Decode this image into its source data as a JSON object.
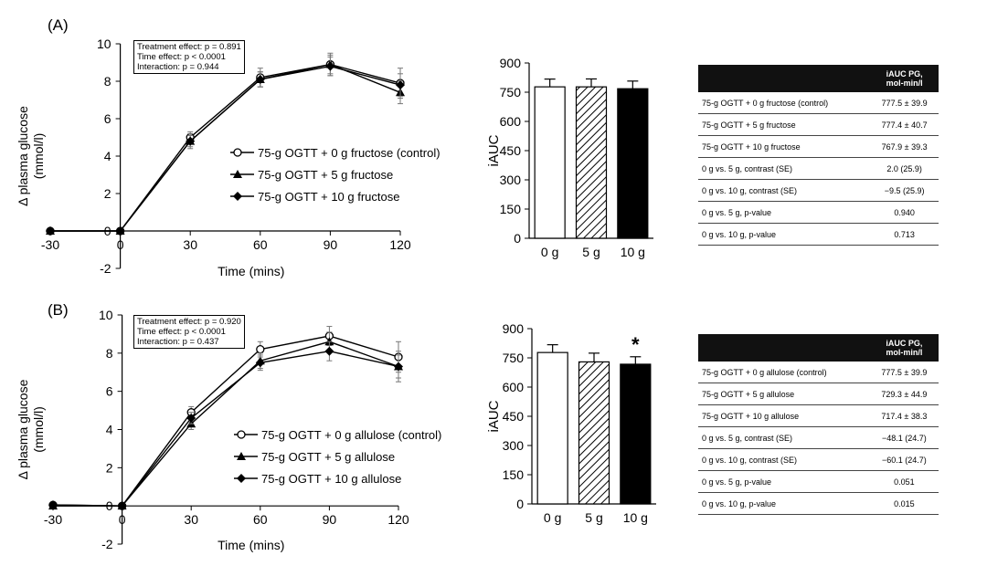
{
  "panels": [
    {
      "label": "(A)",
      "stats": [
        "Treatment effect: p = 0.891",
        "Time effect: p < 0.0001",
        "Interaction: p = 0.944"
      ],
      "table": {
        "header": [
          "",
          "iAUC PG,\nmol-min/l"
        ],
        "rows": [
          [
            "75-g OGTT + 0 g fructose (control)",
            "777.5 ± 39.9"
          ],
          [
            "75-g OGTT + 5 g fructose",
            "777.4 ± 40.7"
          ],
          [
            "75-g OGTT + 10 g fructose",
            "767.9 ± 39.3"
          ],
          [
            "0 g vs. 5 g, contrast (SE)",
            "2.0 (25.9)"
          ],
          [
            "0 g vs. 10 g, contrast (SE)",
            "−9.5 (25.9)"
          ],
          [
            "0 g vs. 5 g, p-value",
            "0.940"
          ],
          [
            "0 g vs. 10 g, p-value",
            "0.713"
          ]
        ]
      }
    },
    {
      "label": "(B)",
      "stats": [
        "Treatment effect: p = 0.920",
        "Time effect: p < 0.0001",
        "Interaction: p = 0.437"
      ],
      "table": {
        "header": [
          "",
          "iAUC PG,\nmol-min/l"
        ],
        "rows": [
          [
            "75-g OGTT + 0 g allulose (control)",
            "777.5 ± 39.9"
          ],
          [
            "75-g OGTT + 5 g allulose",
            "729.3 ± 44.9"
          ],
          [
            "75-g OGTT + 10 g allulose",
            "717.4 ± 38.3"
          ],
          [
            "0 g vs. 5 g, contrast (SE)",
            "−48.1 (24.7)"
          ],
          [
            "0 g vs. 10 g, contrast (SE)",
            "−60.1 (24.7)"
          ],
          [
            "0 g vs. 5 g, p-value",
            "0.051"
          ],
          [
            "0 g vs. 10 g, p-value",
            "0.015"
          ]
        ]
      }
    }
  ],
  "chart_data": [
    {
      "type": "line",
      "ylabel": "Δ plasma glucose\n(mmol/l)",
      "xlabel": "Time (mins)",
      "xticks": [
        -30,
        0,
        30,
        60,
        90,
        120
      ],
      "yticks": [
        -2,
        0,
        2,
        4,
        6,
        8,
        10
      ],
      "xlim": [
        -30,
        120
      ],
      "ylim": [
        -2,
        10
      ],
      "x": [
        -30,
        0,
        30,
        60,
        90,
        120
      ],
      "legend_position": "lower-right",
      "series": [
        {
          "name": "75-g OGTT + 0 g fructose (control)",
          "marker": "open-circle",
          "values": [
            0,
            0,
            5.0,
            8.2,
            8.9,
            7.9
          ],
          "errors": [
            0,
            0,
            0.3,
            0.5,
            0.6,
            0.8
          ]
        },
        {
          "name": "75-g OGTT + 5 g fructose",
          "marker": "triangle",
          "values": [
            0,
            0,
            4.8,
            8.1,
            8.9,
            7.4
          ],
          "errors": [
            0,
            0,
            0.3,
            0.4,
            0.5,
            0.6
          ]
        },
        {
          "name": "75-g OGTT + 10 g fructose",
          "marker": "diamond",
          "values": [
            0,
            0,
            4.8,
            8.1,
            8.8,
            7.8
          ],
          "errors": [
            0,
            0,
            0.4,
            0.4,
            0.5,
            0.6
          ]
        }
      ]
    },
    {
      "type": "bar",
      "ylabel": "iAUC",
      "categories": [
        "0 g",
        "5 g",
        "10 g"
      ],
      "values": [
        777.5,
        777.4,
        767.9
      ],
      "errors": [
        39.9,
        40.7,
        39.3
      ],
      "fills": [
        "white",
        "hatched",
        "black"
      ],
      "yticks": [
        0,
        150,
        300,
        450,
        600,
        750,
        900
      ],
      "ylim": [
        0,
        900
      ],
      "annotations": []
    },
    {
      "type": "line",
      "ylabel": "Δ plasma glucose\n(mmol/l)",
      "xlabel": "Time (mins)",
      "xticks": [
        -30,
        0,
        30,
        60,
        90,
        120
      ],
      "yticks": [
        -2,
        0,
        2,
        4,
        6,
        8,
        10
      ],
      "xlim": [
        -30,
        120
      ],
      "ylim": [
        -2,
        10
      ],
      "x": [
        -30,
        0,
        30,
        60,
        90,
        120
      ],
      "legend_position": "lower-right",
      "series": [
        {
          "name": "75-g OGTT + 0 g allulose (control)",
          "marker": "open-circle",
          "values": [
            0.05,
            0,
            4.9,
            8.2,
            8.9,
            7.8
          ],
          "errors": [
            0,
            0,
            0.3,
            0.4,
            0.5,
            0.8
          ]
        },
        {
          "name": "75-g OGTT + 5 g allulose",
          "marker": "triangle",
          "values": [
            0,
            0,
            4.3,
            7.6,
            8.6,
            7.3
          ],
          "errors": [
            0,
            0,
            0.3,
            0.4,
            0.5,
            0.6
          ]
        },
        {
          "name": "75-g OGTT + 10 g allulose",
          "marker": "diamond",
          "values": [
            0.05,
            0,
            4.6,
            7.5,
            8.1,
            7.3
          ],
          "errors": [
            0,
            0,
            0.3,
            0.4,
            0.5,
            0.8
          ]
        }
      ]
    },
    {
      "type": "bar",
      "ylabel": "iAUC",
      "categories": [
        "0 g",
        "5 g",
        "10 g"
      ],
      "values": [
        777.5,
        729.3,
        717.4
      ],
      "errors": [
        39.9,
        44.9,
        38.3
      ],
      "fills": [
        "white",
        "hatched",
        "black"
      ],
      "yticks": [
        0,
        150,
        300,
        450,
        600,
        750,
        900
      ],
      "ylim": [
        0,
        900
      ],
      "annotations": [
        {
          "category": "10 g",
          "text": "*"
        }
      ]
    }
  ]
}
